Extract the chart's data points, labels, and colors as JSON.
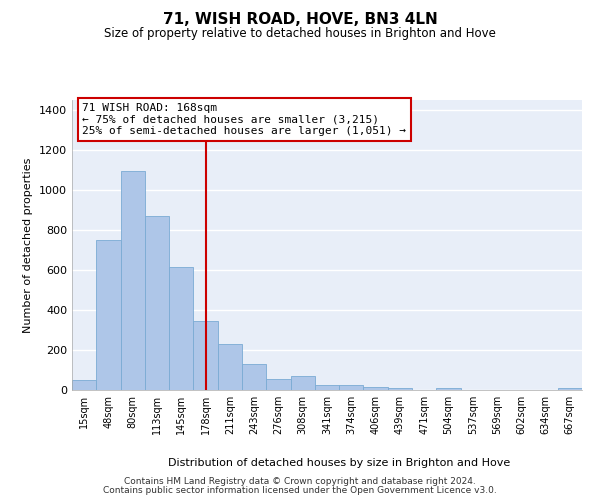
{
  "title": "71, WISH ROAD, HOVE, BN3 4LN",
  "subtitle": "Size of property relative to detached houses in Brighton and Hove",
  "xlabel": "Distribution of detached houses by size in Brighton and Hove",
  "ylabel": "Number of detached properties",
  "bar_labels": [
    "15sqm",
    "48sqm",
    "80sqm",
    "113sqm",
    "145sqm",
    "178sqm",
    "211sqm",
    "243sqm",
    "276sqm",
    "308sqm",
    "341sqm",
    "374sqm",
    "406sqm",
    "439sqm",
    "471sqm",
    "504sqm",
    "537sqm",
    "569sqm",
    "602sqm",
    "634sqm",
    "667sqm"
  ],
  "bar_values": [
    50,
    750,
    1095,
    870,
    615,
    345,
    228,
    132,
    55,
    68,
    27,
    25,
    15,
    10,
    0,
    10,
    0,
    0,
    0,
    0,
    10
  ],
  "bar_color": "#aec6e8",
  "bar_edgecolor": "#7aabd4",
  "ylim": [
    0,
    1450
  ],
  "yticks": [
    0,
    200,
    400,
    600,
    800,
    1000,
    1200,
    1400
  ],
  "vline_x": 5.0,
  "vline_color": "#cc0000",
  "annotation_title": "71 WISH ROAD: 168sqm",
  "annotation_line1": "← 75% of detached houses are smaller (3,215)",
  "annotation_line2": "25% of semi-detached houses are larger (1,051) →",
  "annotation_box_edgecolor": "#cc0000",
  "footnote1": "Contains HM Land Registry data © Crown copyright and database right 2024.",
  "footnote2": "Contains public sector information licensed under the Open Government Licence v3.0.",
  "plot_bg_color": "#e8eef8",
  "grid_color": "#ffffff",
  "fig_bg": "#ffffff"
}
